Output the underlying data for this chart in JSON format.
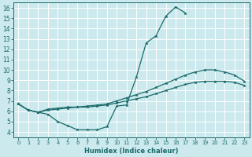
{
  "xlabel": "Humidex (Indice chaleur)",
  "bg_color": "#cce9ee",
  "grid_color": "#ffffff",
  "line_color": "#1a6b6b",
  "xlim": [
    -0.5,
    23.5
  ],
  "ylim": [
    3.5,
    16.5
  ],
  "xticks": [
    0,
    1,
    2,
    3,
    4,
    5,
    6,
    7,
    8,
    9,
    10,
    11,
    12,
    13,
    14,
    15,
    16,
    17,
    18,
    19,
    20,
    21,
    22,
    23
  ],
  "yticks": [
    4,
    5,
    6,
    7,
    8,
    9,
    10,
    11,
    12,
    13,
    14,
    15,
    16
  ],
  "line1_x": [
    0,
    1,
    2,
    3,
    4,
    5,
    6,
    7,
    8,
    9,
    10,
    11,
    12,
    13,
    14,
    15,
    16,
    17
  ],
  "line1_y": [
    6.7,
    6.1,
    5.9,
    5.7,
    5.0,
    4.6,
    4.2,
    4.2,
    4.2,
    4.5,
    6.5,
    6.6,
    9.3,
    12.6,
    13.3,
    15.2,
    16.1,
    15.5
  ],
  "line2_x": [
    0,
    1,
    2,
    3,
    4,
    5,
    6,
    7,
    8,
    9,
    10,
    11,
    12,
    13,
    14,
    15,
    16,
    17,
    18,
    19,
    20,
    21,
    22,
    23
  ],
  "line2_y": [
    6.7,
    6.1,
    5.9,
    6.2,
    6.3,
    6.4,
    6.4,
    6.5,
    6.6,
    6.7,
    7.0,
    7.3,
    7.6,
    7.9,
    8.3,
    8.7,
    9.1,
    9.5,
    9.8,
    10.0,
    10.0,
    9.8,
    9.5,
    8.9
  ],
  "line3_x": [
    0,
    1,
    2,
    3,
    4,
    5,
    6,
    7,
    8,
    9,
    10,
    11,
    12,
    13,
    14,
    15,
    16,
    17,
    18,
    19,
    20,
    21,
    22,
    23
  ],
  "line3_y": [
    6.7,
    6.1,
    5.9,
    6.1,
    6.2,
    6.3,
    6.4,
    6.4,
    6.5,
    6.6,
    6.8,
    7.0,
    7.2,
    7.4,
    7.7,
    8.0,
    8.3,
    8.6,
    8.8,
    8.9,
    8.9,
    8.9,
    8.8,
    8.5
  ],
  "marker_size": 2.5,
  "line_width": 0.9,
  "tick_fontsize_x": 4.8,
  "tick_fontsize_y": 5.5,
  "xlabel_fontsize": 6.0
}
